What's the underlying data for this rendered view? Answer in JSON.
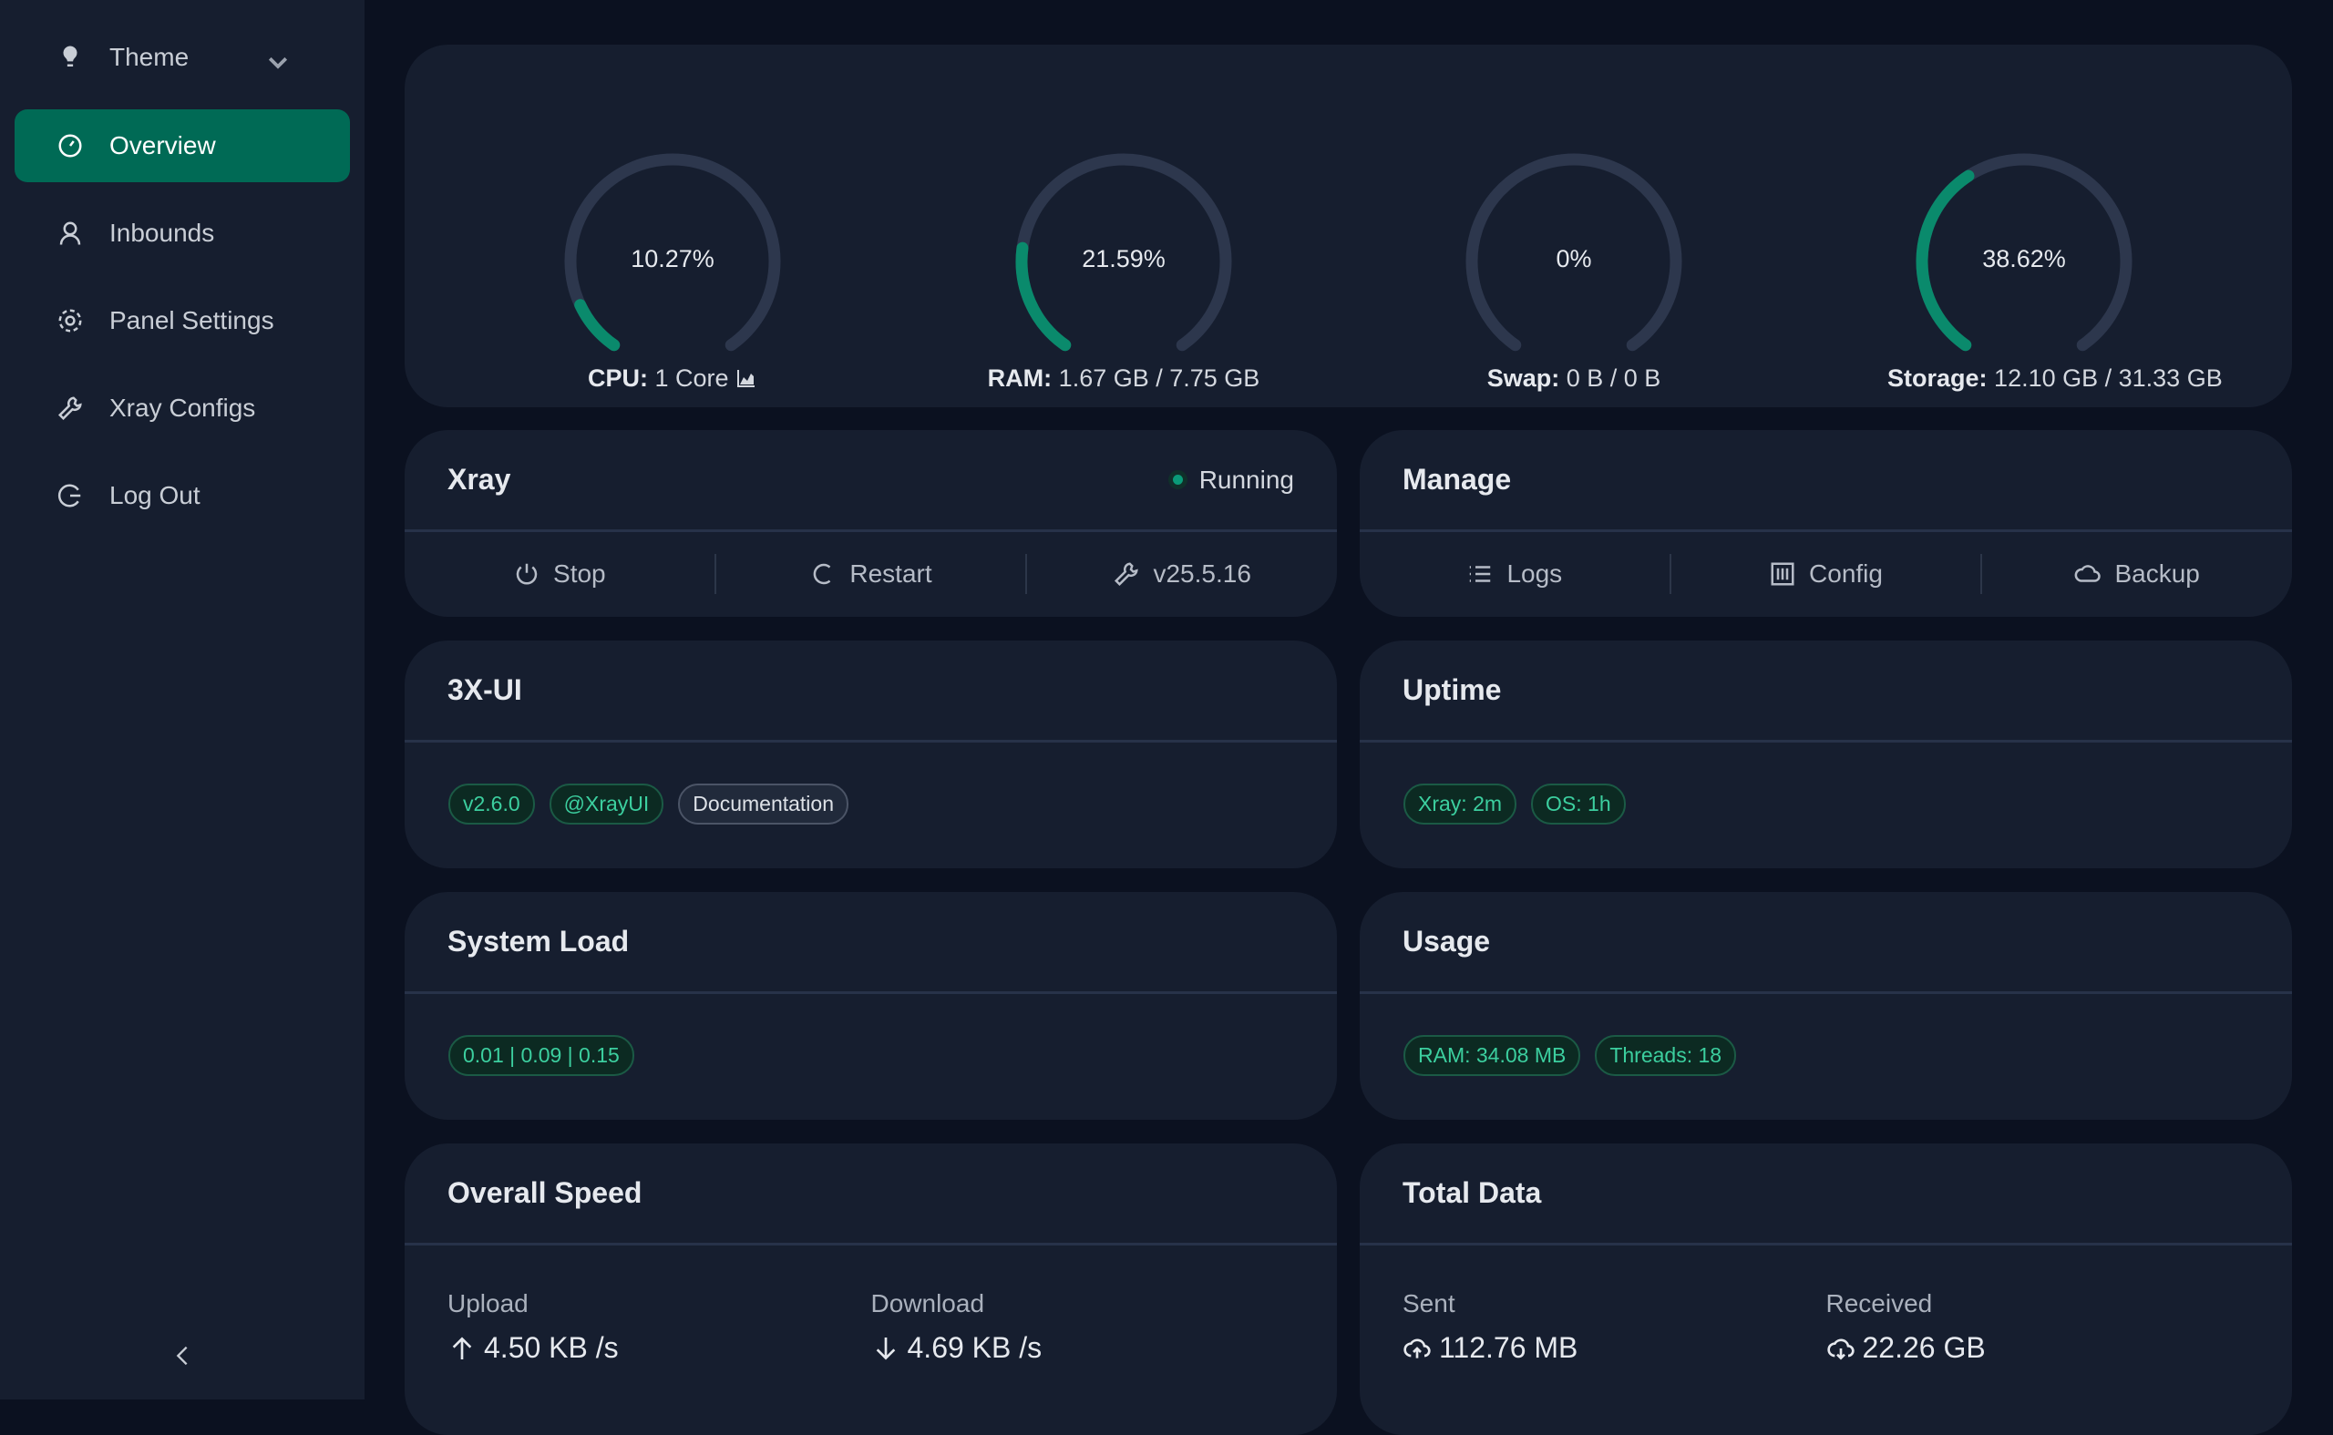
{
  "colors": {
    "accent": "#006a55",
    "gauge_fill": "#0a8a6c",
    "gauge_track": "#2d374d",
    "running": "#0a9b78"
  },
  "sidebar": {
    "theme_label": "Theme",
    "items": [
      {
        "label": "Overview",
        "icon": "dashboard-icon",
        "active": true
      },
      {
        "label": "Inbounds",
        "icon": "user-icon"
      },
      {
        "label": "Panel Settings",
        "icon": "gear-icon"
      },
      {
        "label": "Xray Configs",
        "icon": "wrench-icon"
      },
      {
        "label": "Log Out",
        "icon": "logout-icon"
      }
    ]
  },
  "gauges": [
    {
      "value": "10.27%",
      "percent": 10.27,
      "label": "CPU:",
      "detail": "1 Core"
    },
    {
      "value": "21.59%",
      "percent": 21.59,
      "label": "RAM:",
      "detail": "1.67 GB / 7.75 GB"
    },
    {
      "value": "0%",
      "percent": 0,
      "label": "Swap:",
      "detail": "0 B / 0 B"
    },
    {
      "value": "38.62%",
      "percent": 38.62,
      "label": "Storage:",
      "detail": "12.10 GB / 31.33 GB"
    }
  ],
  "xray": {
    "title": "Xray",
    "status": "Running",
    "stop": "Stop",
    "restart": "Restart",
    "version": "v25.5.16"
  },
  "manage": {
    "title": "Manage",
    "logs": "Logs",
    "config": "Config",
    "backup": "Backup"
  },
  "app": {
    "title": "3X-UI",
    "version": "v2.6.0",
    "channel": "@XrayUI",
    "docs": "Documentation"
  },
  "uptime": {
    "title": "Uptime",
    "xray": "Xray: 2m",
    "os": "OS: 1h"
  },
  "load": {
    "title": "System Load",
    "value": "0.01 | 0.09 | 0.15"
  },
  "usage": {
    "title": "Usage",
    "ram": "RAM: 34.08 MB",
    "threads": "Threads: 18"
  },
  "speed": {
    "title": "Overall Speed",
    "upload_label": "Upload",
    "upload": "4.50 KB /s",
    "download_label": "Download",
    "download": "4.69 KB /s"
  },
  "total": {
    "title": "Total Data",
    "sent_label": "Sent",
    "sent": "112.76 MB",
    "received_label": "Received",
    "received": "22.26 GB"
  }
}
